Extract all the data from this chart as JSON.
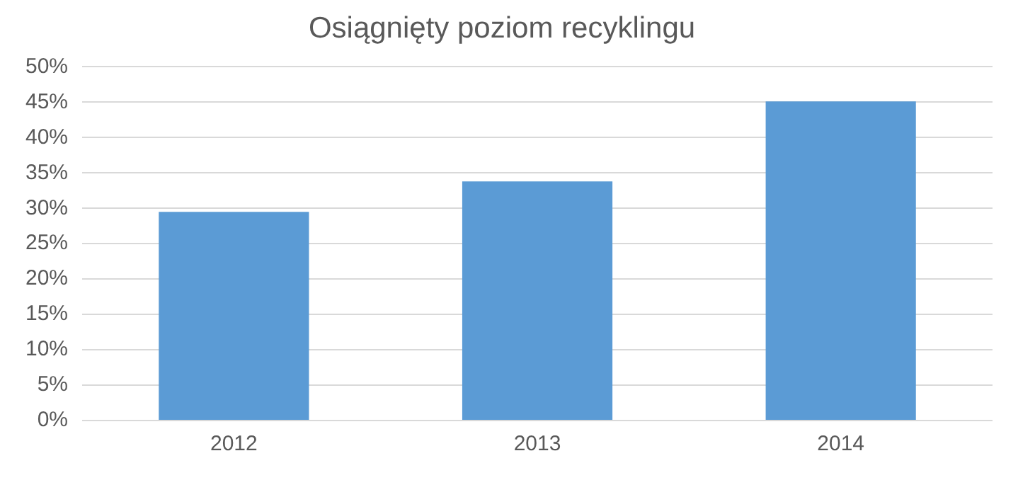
{
  "chart_data": {
    "type": "bar",
    "title": "Osiągnięty poziom recyklingu",
    "categories": [
      "2012",
      "2013",
      "2014"
    ],
    "values": [
      29.5,
      33.8,
      45.1
    ],
    "color": "#5b9bd5",
    "ylim": [
      0,
      50
    ],
    "yticks": [
      {
        "value": 0,
        "label": "0%"
      },
      {
        "value": 5,
        "label": "5%"
      },
      {
        "value": 10,
        "label": "10%"
      },
      {
        "value": 15,
        "label": "15%"
      },
      {
        "value": 20,
        "label": "20%"
      },
      {
        "value": 25,
        "label": "25%"
      },
      {
        "value": 30,
        "label": "30%"
      },
      {
        "value": 35,
        "label": "35%"
      },
      {
        "value": 40,
        "label": "40%"
      },
      {
        "value": 45,
        "label": "45%"
      },
      {
        "value": 50,
        "label": "50%"
      }
    ],
    "grid": "y",
    "legend": false
  }
}
